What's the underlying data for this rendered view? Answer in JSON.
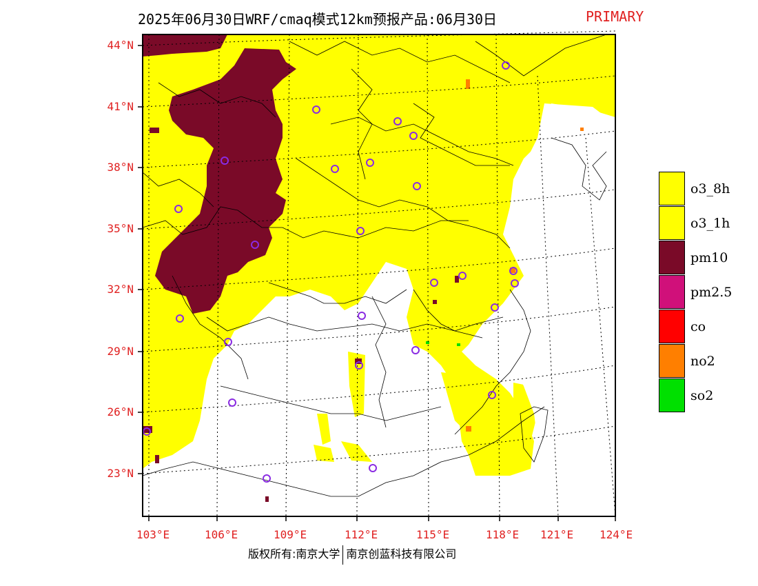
{
  "title": {
    "main": "2025年06月30日WRF/cmaq模式12km预报产品:06月30日",
    "tag": "PRIMARY"
  },
  "axes": {
    "lat_labels": [
      "44°N",
      "41°N",
      "38°N",
      "35°N",
      "32°N",
      "29°N",
      "26°N",
      "23°N"
    ],
    "lon_labels": [
      "103°E",
      "106°E",
      "109°E",
      "112°E",
      "115°E",
      "118°E",
      "121°E",
      "124°E"
    ]
  },
  "legend": {
    "items": [
      {
        "label": "o3_8h",
        "color": "#ffff00"
      },
      {
        "label": "o3_1h",
        "color": "#ffff00"
      },
      {
        "label": "pm10",
        "color": "#7a0a28"
      },
      {
        "label": "pm2.5",
        "color": "#d0107a"
      },
      {
        "label": "co",
        "color": "#ff0000"
      },
      {
        "label": "no2",
        "color": "#ff7f00"
      },
      {
        "label": "so2",
        "color": "#00e000"
      }
    ]
  },
  "footer": {
    "left": "版权所有:南京大学",
    "right": "南京创蓝科技有限公司"
  },
  "colors": {
    "title_tag": "#e02020",
    "axis_labels": "#e02020",
    "station_marker": "#8a2be2"
  }
}
